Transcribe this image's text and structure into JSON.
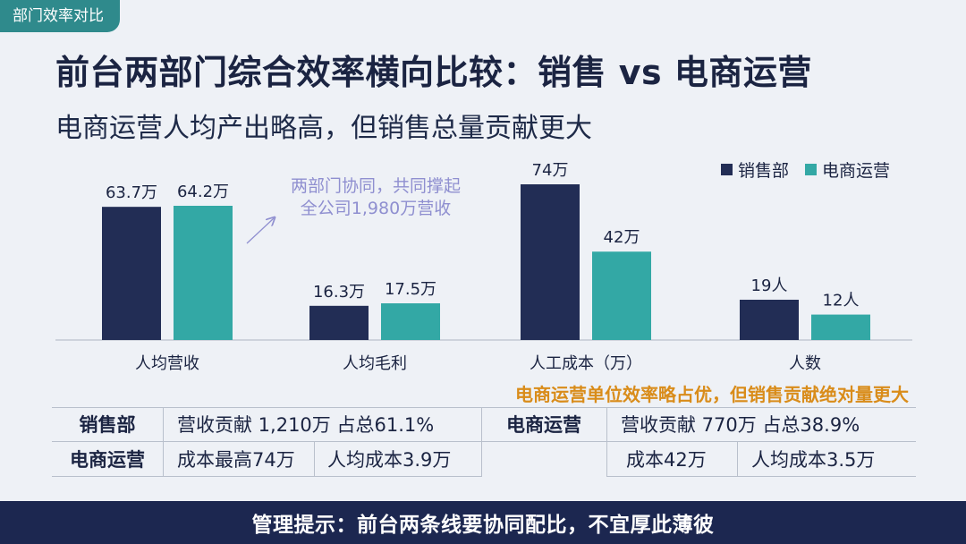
{
  "tag": "部门效率对比",
  "title": "前台两部门综合效率横向比较：销售 vs 电商运营",
  "subtitle": "电商运营人均产出略高，但销售总量贡献更大",
  "annotation": [
    "两部门协同，共同撑起",
    "全公司1,980万营收"
  ],
  "caption": "电商运营单位效率略占优，但销售贡献绝对量更大",
  "colors": {
    "sales": "#222d55",
    "ecom": "#33a8a5",
    "accent": "#d98c1a",
    "annotation": "#8f8fd0",
    "footer_bg": "#1c2750"
  },
  "chart_data": {
    "type": "bar",
    "categories": [
      "人均营收",
      "人均毛利",
      "人工成本（万）",
      "人数"
    ],
    "series": [
      {
        "name": "销售部",
        "values": [
          63.7,
          16.3,
          74,
          19
        ],
        "labels": [
          "63.7万",
          "16.3万",
          "74万",
          "19人"
        ]
      },
      {
        "name": "电商运营",
        "values": [
          64.2,
          17.5,
          42,
          12
        ],
        "labels": [
          "64.2万",
          "17.5万",
          "42万",
          "12人"
        ]
      }
    ],
    "legend": "top-right",
    "grid": false
  },
  "stats": {
    "sales": {
      "name": "销售部",
      "revenue": "营收贡献 1,210万 占总61.1%",
      "cost": "成本最高74万",
      "per_capita_cost": "人均成本3.9万"
    },
    "ecom": {
      "name": "电商运营",
      "revenue": "营收贡献 770万 占总38.9%",
      "cost": "成本42万",
      "per_capita_cost": "人均成本3.5万"
    },
    "row2_label": "电商运营"
  },
  "footer": "管理提示：前台两条线要协同配比，不宜厚此薄彼"
}
